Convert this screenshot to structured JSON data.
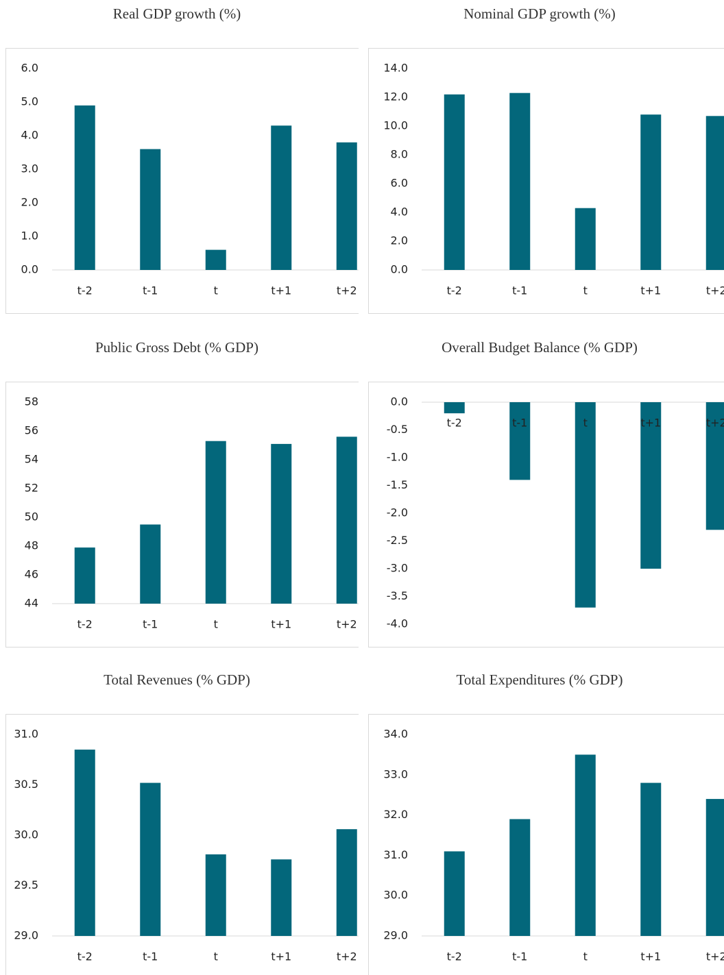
{
  "charts": [
    {
      "chart_data": {
        "type": "bar",
        "title": "Real GDP growth (%)",
        "categories": [
          "t-2",
          "t-1",
          "t",
          "t+1",
          "t+2"
        ],
        "values": [
          4.9,
          3.6,
          0.6,
          4.3,
          3.8
        ],
        "color": "#03677b",
        "ylim": [
          0,
          6
        ],
        "yticks": [
          {
            "value": 0,
            "label": "0.0"
          },
          {
            "value": 1,
            "label": "1.0"
          },
          {
            "value": 2,
            "label": "2.0"
          },
          {
            "value": 3,
            "label": "3.0"
          },
          {
            "value": 4,
            "label": "4.0"
          },
          {
            "value": 5,
            "label": "5.0"
          },
          {
            "value": 6,
            "label": "6.0"
          }
        ]
      }
    },
    {
      "chart_data": {
        "type": "bar",
        "title": "Nominal GDP growth (%)",
        "categories": [
          "t-2",
          "t-1",
          "t",
          "t+1",
          "t+2"
        ],
        "values": [
          12.2,
          12.3,
          4.3,
          10.8,
          10.7
        ],
        "color": "#03677b",
        "ylim": [
          0,
          14
        ],
        "yticks": [
          {
            "value": 0,
            "label": "0.0"
          },
          {
            "value": 2,
            "label": "2.0"
          },
          {
            "value": 4,
            "label": "4.0"
          },
          {
            "value": 6,
            "label": "6.0"
          },
          {
            "value": 8,
            "label": "8.0"
          },
          {
            "value": 10,
            "label": "10.0"
          },
          {
            "value": 12,
            "label": "12.0"
          },
          {
            "value": 14,
            "label": "14.0"
          }
        ]
      }
    },
    {
      "chart_data": {
        "type": "bar",
        "title": "Public Gross Debt (% GDP)",
        "categories": [
          "t-2",
          "t-1",
          "t",
          "t+1",
          "t+2"
        ],
        "values": [
          47.9,
          49.5,
          55.3,
          55.1,
          55.6
        ],
        "color": "#03677b",
        "ylim": [
          44,
          58
        ],
        "yticks": [
          44,
          46,
          48,
          50,
          52,
          54,
          56,
          58
        ]
      }
    },
    {
      "chart_data": {
        "type": "bar",
        "title": "Overall Budget Balance (% GDP)",
        "categories": [
          "t-2",
          "t-1",
          "t",
          "t+1",
          "t+2"
        ],
        "values": [
          -0.2,
          -1.4,
          -3.7,
          -3.0,
          -2.3
        ],
        "color": "#03677b",
        "ylim": [
          -4,
          0
        ],
        "yticks": [
          {
            "value": -4,
            "label": "-4.0"
          },
          {
            "value": -3.5,
            "label": "-3.5"
          },
          {
            "value": -3,
            "label": "-3.0"
          },
          {
            "value": -2.5,
            "label": "-2.5"
          },
          {
            "value": -2,
            "label": "-2.0"
          },
          {
            "value": -1.5,
            "label": "-1.5"
          },
          {
            "value": -1,
            "label": "-1.0"
          },
          {
            "value": -0.5,
            "label": "-0.5"
          },
          {
            "value": 0,
            "label": "0.0"
          }
        ]
      }
    },
    {
      "chart_data": {
        "type": "bar",
        "title": "Total Revenues (% GDP)",
        "categories": [
          "t-2",
          "t-1",
          "t",
          "t+1",
          "t+2"
        ],
        "values": [
          30.85,
          30.52,
          29.81,
          29.76,
          30.06
        ],
        "color": "#03677b",
        "ylim": [
          29,
          31
        ],
        "yticks": [
          {
            "value": 29,
            "label": "29.0"
          },
          29.5,
          {
            "value": 30,
            "label": "30.0"
          },
          30.5,
          {
            "value": 31,
            "label": "31.0"
          }
        ]
      }
    },
    {
      "chart_data": {
        "type": "bar",
        "title": "Total Expenditures (% GDP)",
        "categories": [
          "t-2",
          "t-1",
          "t",
          "t+1",
          "t+2"
        ],
        "values": [
          31.1,
          31.9,
          33.5,
          32.8,
          32.4
        ],
        "color": "#03677b",
        "ylim": [
          29,
          34
        ],
        "yticks": [
          {
            "value": 29,
            "label": "29.0"
          },
          {
            "value": 30,
            "label": "30.0"
          },
          {
            "value": 31,
            "label": "31.0"
          },
          {
            "value": 32,
            "label": "32.0"
          },
          {
            "value": 33,
            "label": "33.0"
          },
          {
            "value": 34,
            "label": "34.0"
          }
        ]
      }
    }
  ]
}
